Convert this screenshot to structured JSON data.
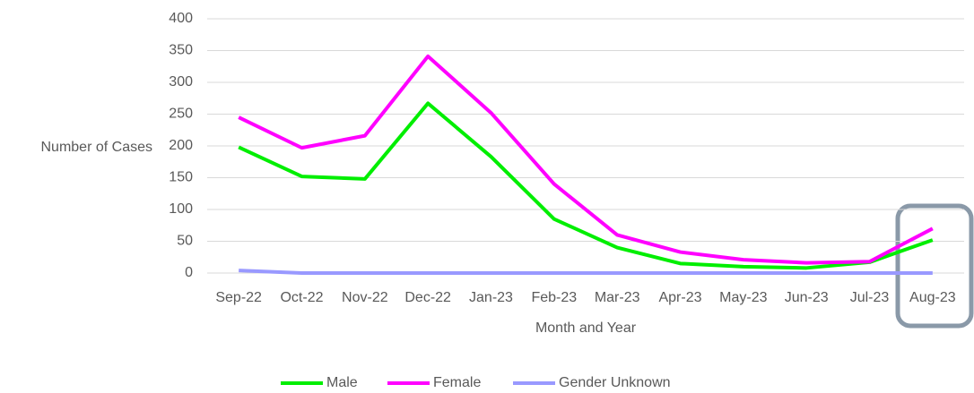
{
  "chart_data": {
    "type": "line",
    "xlabel": "Month and Year",
    "ylabel": "Number of Cases",
    "categories": [
      "Sep-22",
      "Oct-22",
      "Nov-22",
      "Dec-22",
      "Jan-23",
      "Feb-23",
      "Mar-23",
      "Apr-23",
      "May-23",
      "Jun-23",
      "Jul-23",
      "Aug-23"
    ],
    "series": [
      {
        "name": "Male",
        "color": "#00ee00",
        "values": [
          198,
          152,
          148,
          267,
          183,
          85,
          40,
          15,
          10,
          8,
          17,
          52
        ]
      },
      {
        "name": "Female",
        "color": "#ff00ff",
        "values": [
          245,
          197,
          216,
          341,
          252,
          140,
          60,
          33,
          21,
          16,
          18,
          70
        ]
      },
      {
        "name": "Gender Unknown",
        "color": "#9999ff",
        "values": [
          4,
          0,
          0,
          0,
          0,
          0,
          0,
          0,
          0,
          0,
          0,
          0
        ]
      }
    ],
    "ylim": [
      0,
      400
    ],
    "yticks": [
      0,
      50,
      100,
      150,
      200,
      250,
      300,
      350,
      400
    ],
    "grid": true,
    "legend": "bottom"
  }
}
